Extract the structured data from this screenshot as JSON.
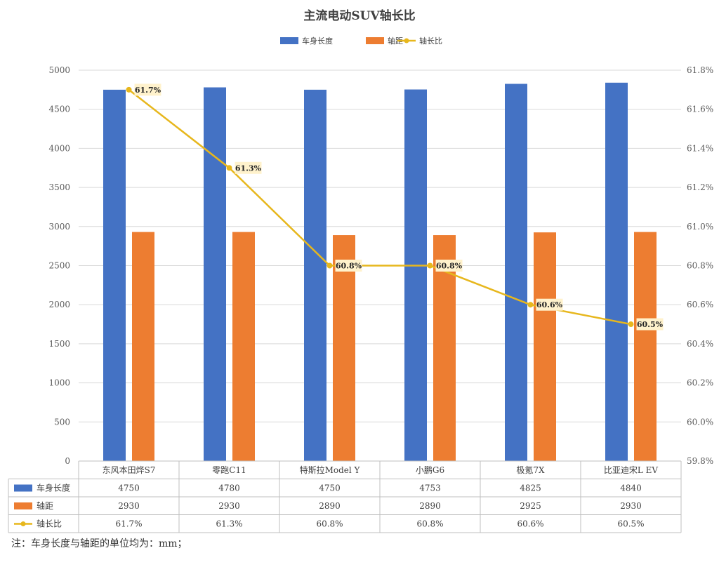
{
  "chart_data": {
    "type": "bar",
    "title": "主流电动SUV轴长比",
    "categories": [
      "东风本田烨S7",
      "零跑C11",
      "特斯拉Model Y",
      "小鹏G6",
      "极氪7X",
      "比亚迪宋L EV"
    ],
    "series": [
      {
        "name": "车身长度",
        "type": "bar",
        "color": "#4472C4",
        "axis": "left",
        "values": [
          4750,
          4780,
          4750,
          4753,
          4825,
          4840
        ]
      },
      {
        "name": "轴距",
        "type": "bar",
        "color": "#ED7D31",
        "axis": "left",
        "values": [
          2930,
          2930,
          2890,
          2890,
          2925,
          2930
        ]
      },
      {
        "name": "轴长比",
        "type": "line",
        "color": "#E7B71D",
        "axis": "right",
        "values": [
          61.7,
          61.3,
          60.8,
          60.8,
          60.6,
          60.5
        ]
      }
    ],
    "data_labels": [
      "61.7%",
      "61.3%",
      "60.8%",
      "60.8%",
      "60.6%",
      "60.5%"
    ],
    "left_axis": {
      "min": 0,
      "max": 5000,
      "ticks": [
        "0",
        "500",
        "1000",
        "1500",
        "2000",
        "2500",
        "3000",
        "3500",
        "4000",
        "4500",
        "5000"
      ]
    },
    "right_axis": {
      "min": 59.8,
      "max": 61.8,
      "ticks": [
        "59.8%",
        "60.0%",
        "60.2%",
        "60.4%",
        "60.6%",
        "60.8%",
        "61.0%",
        "61.2%",
        "61.4%",
        "61.6%",
        "61.8%"
      ]
    },
    "table": {
      "rows": [
        {
          "name": "车身长度",
          "cells": [
            "4750",
            "4780",
            "4750",
            "4753",
            "4825",
            "4840"
          ]
        },
        {
          "name": "轴距",
          "cells": [
            "2930",
            "2930",
            "2890",
            "2890",
            "2925",
            "2930"
          ]
        },
        {
          "name": "轴长比",
          "cells": [
            "61.7%",
            "61.3%",
            "60.8%",
            "60.8%",
            "60.6%",
            "60.5%"
          ]
        }
      ]
    },
    "legend": {
      "position": "top",
      "items": [
        "车身长度",
        "轴距",
        "轴长比"
      ]
    },
    "grid": true,
    "label_bg": "#FFF2CC"
  },
  "note": "注：车身长度与轴距的单位均为：mm；"
}
